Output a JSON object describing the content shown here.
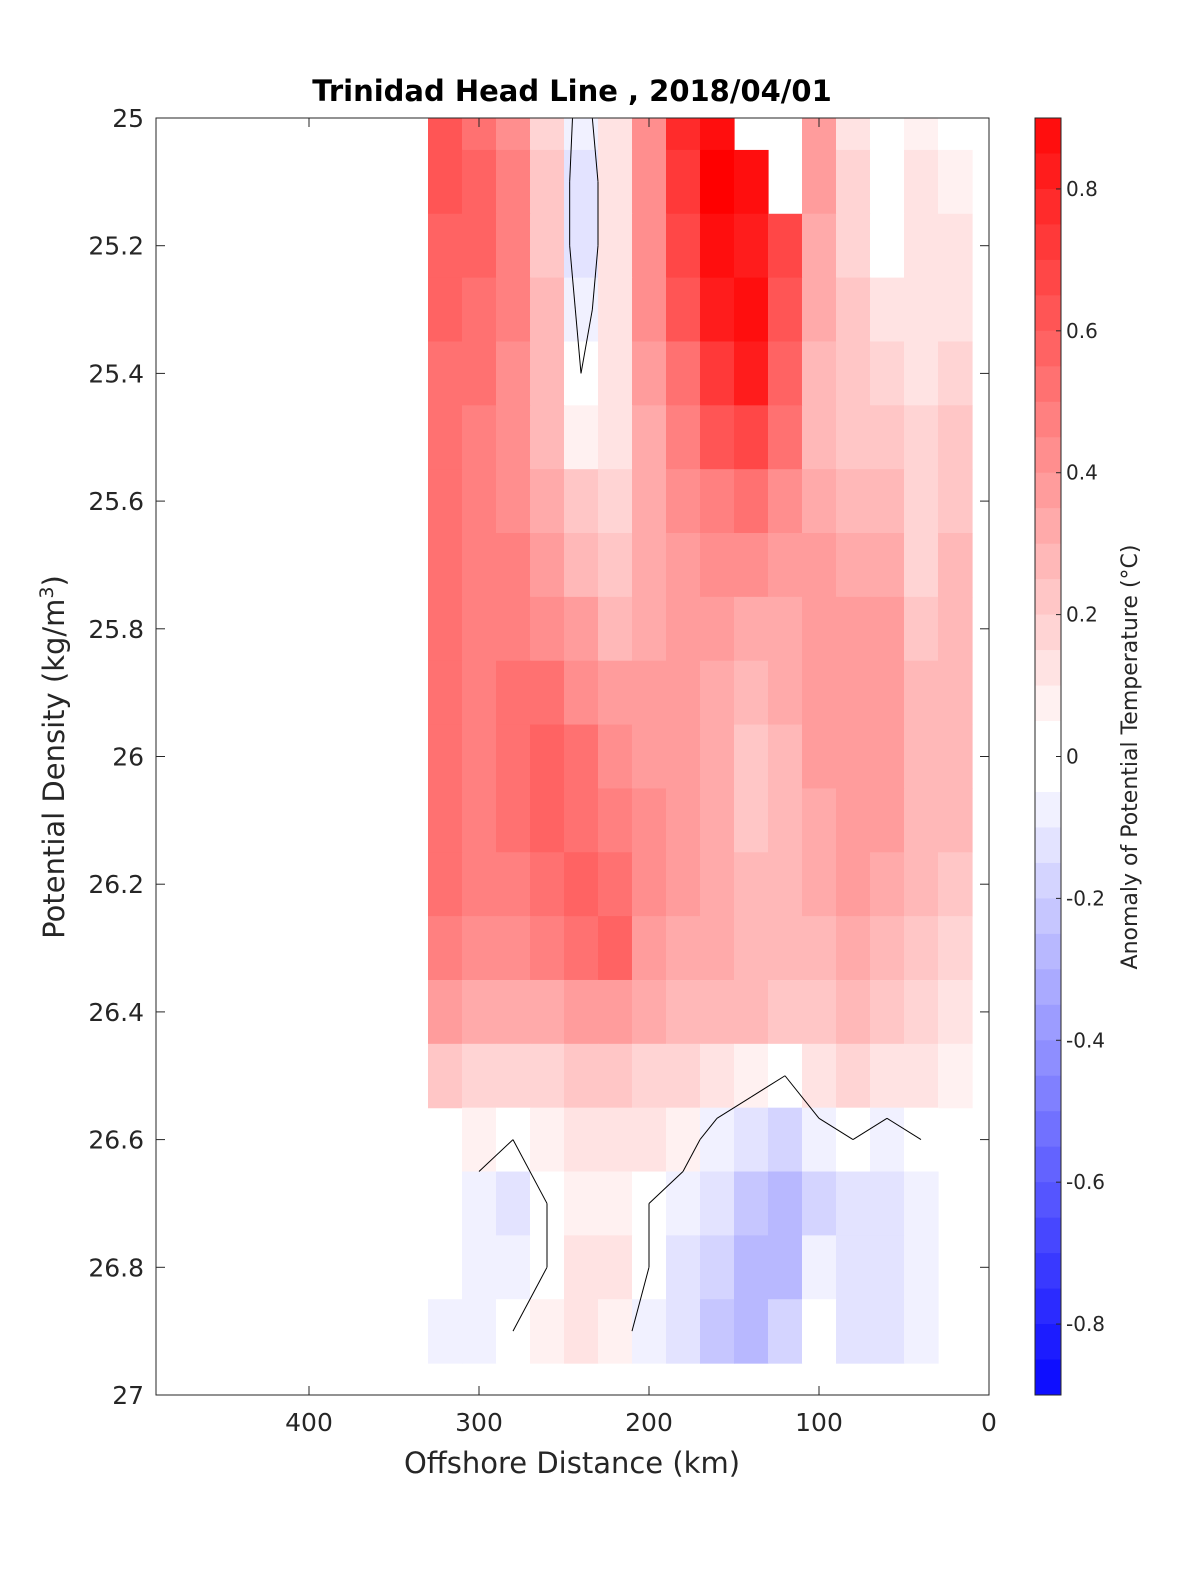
{
  "chart_data": {
    "type": "heatmap",
    "title": "Trinidad Head Line , 2018/04/01",
    "xlabel": "Offshore Distance (km)",
    "ylabel": "Potential Density (kg/m",
    "ylabel_superscript": "3",
    "ylabel_suffix": ")",
    "colorbar_label": "Anomaly of Potential Temperature (°C)",
    "xlim": [
      490,
      0
    ],
    "ylim": [
      25,
      27
    ],
    "x_ticks": [
      400,
      300,
      200,
      100,
      0
    ],
    "x_tick_labels": [
      "400",
      "300",
      "200",
      "100",
      "0"
    ],
    "y_ticks": [
      25,
      25.2,
      25.4,
      25.6,
      25.8,
      26,
      26.2,
      26.4,
      26.6,
      26.8,
      27
    ],
    "y_tick_labels": [
      "25",
      "25.2",
      "25.4",
      "25.6",
      "25.8",
      "26",
      "26.2",
      "26.4",
      "26.6",
      "26.8",
      "27"
    ],
    "colorbar_range": [
      -0.9,
      0.9
    ],
    "colorbar_ticks": [
      0.8,
      0.6,
      0.4,
      0.2,
      0,
      -0.2,
      -0.4,
      -0.6,
      -0.8
    ],
    "colorbar_tick_labels": [
      "0.8",
      "0.6",
      "0.4",
      "0.2",
      "0",
      "-0.2",
      "-0.4",
      "-0.6",
      "-0.8"
    ],
    "colormap": {
      "negative": "#0000ff",
      "zero": "#ffffff",
      "positive": "#ff0000"
    },
    "contour_level": 0,
    "x": [
      320,
      300,
      280,
      260,
      240,
      220,
      200,
      180,
      160,
      140,
      120,
      100,
      80,
      60,
      40,
      20
    ],
    "y": [
      25,
      25.1,
      25.2,
      25.3,
      25.4,
      25.5,
      25.6,
      25.7,
      25.8,
      25.9,
      26,
      26.1,
      26.2,
      26.3,
      26.4,
      26.5,
      26.6,
      26.7,
      26.8,
      26.9
    ],
    "z": [
      [
        0.6,
        0.5,
        0.4,
        0.15,
        -0.05,
        0.1,
        0.4,
        0.75,
        0.85,
        null,
        null,
        0.35,
        0.1,
        0.0,
        0.05,
        0.0
      ],
      [
        0.6,
        0.55,
        0.45,
        0.2,
        -0.1,
        0.1,
        0.4,
        0.7,
        0.9,
        0.85,
        null,
        0.35,
        0.15,
        0.0,
        0.1,
        0.05
      ],
      [
        0.55,
        0.55,
        0.45,
        0.2,
        -0.1,
        0.1,
        0.4,
        0.65,
        0.85,
        0.8,
        0.65,
        0.3,
        0.15,
        0.0,
        0.1,
        0.1
      ],
      [
        0.55,
        0.5,
        0.45,
        0.25,
        -0.05,
        0.1,
        0.4,
        0.6,
        0.8,
        0.85,
        0.6,
        0.3,
        0.2,
        0.1,
        0.1,
        0.1
      ],
      [
        0.5,
        0.5,
        0.4,
        0.25,
        0.0,
        0.1,
        0.35,
        0.5,
        0.7,
        0.8,
        0.55,
        0.25,
        0.2,
        0.15,
        0.1,
        0.15
      ],
      [
        0.5,
        0.45,
        0.4,
        0.25,
        0.05,
        0.1,
        0.3,
        0.45,
        0.6,
        0.65,
        0.5,
        0.25,
        0.2,
        0.2,
        0.15,
        0.2
      ],
      [
        0.5,
        0.45,
        0.4,
        0.3,
        0.2,
        0.15,
        0.3,
        0.4,
        0.45,
        0.5,
        0.4,
        0.3,
        0.25,
        0.25,
        0.15,
        0.2
      ],
      [
        0.5,
        0.45,
        0.45,
        0.35,
        0.25,
        0.2,
        0.3,
        0.35,
        0.4,
        0.4,
        0.35,
        0.35,
        0.3,
        0.3,
        0.15,
        0.25
      ],
      [
        0.5,
        0.45,
        0.45,
        0.4,
        0.35,
        0.25,
        0.3,
        0.35,
        0.35,
        0.3,
        0.3,
        0.35,
        0.35,
        0.35,
        0.2,
        0.25
      ],
      [
        0.5,
        0.45,
        0.5,
        0.5,
        0.4,
        0.35,
        0.35,
        0.35,
        0.3,
        0.25,
        0.3,
        0.35,
        0.35,
        0.35,
        0.25,
        0.25
      ],
      [
        0.5,
        0.45,
        0.5,
        0.55,
        0.5,
        0.4,
        0.35,
        0.35,
        0.3,
        0.2,
        0.25,
        0.35,
        0.35,
        0.35,
        0.25,
        0.25
      ],
      [
        0.5,
        0.45,
        0.5,
        0.55,
        0.5,
        0.45,
        0.4,
        0.35,
        0.3,
        0.2,
        0.25,
        0.3,
        0.35,
        0.35,
        0.25,
        0.25
      ],
      [
        0.5,
        0.45,
        0.45,
        0.5,
        0.55,
        0.5,
        0.4,
        0.35,
        0.3,
        0.25,
        0.25,
        0.3,
        0.35,
        0.3,
        0.25,
        0.2
      ],
      [
        0.45,
        0.4,
        0.4,
        0.45,
        0.5,
        0.55,
        0.35,
        0.3,
        0.3,
        0.25,
        0.25,
        0.25,
        0.3,
        0.25,
        0.2,
        0.15
      ],
      [
        0.35,
        0.3,
        0.3,
        0.3,
        0.35,
        0.35,
        0.3,
        0.25,
        0.25,
        0.25,
        0.2,
        0.2,
        0.25,
        0.2,
        0.15,
        0.1
      ],
      [
        0.2,
        0.15,
        0.15,
        0.15,
        0.2,
        0.2,
        0.15,
        0.15,
        0.1,
        0.05,
        0.0,
        0.1,
        0.15,
        0.1,
        0.1,
        0.05
      ],
      [
        null,
        0.05,
        0.0,
        0.05,
        0.1,
        0.1,
        0.1,
        0.05,
        -0.05,
        -0.1,
        -0.15,
        -0.05,
        0.0,
        -0.05,
        0.0,
        null
      ],
      [
        null,
        -0.05,
        -0.1,
        0.0,
        0.05,
        0.05,
        0.0,
        -0.05,
        -0.1,
        -0.2,
        -0.25,
        -0.15,
        -0.1,
        -0.1,
        -0.05,
        null
      ],
      [
        null,
        -0.05,
        -0.05,
        0.0,
        0.1,
        0.1,
        0.0,
        -0.1,
        -0.15,
        -0.25,
        -0.25,
        -0.05,
        -0.1,
        -0.1,
        -0.05,
        null
      ],
      [
        -0.05,
        -0.05,
        0.0,
        0.05,
        0.1,
        0.05,
        -0.05,
        -0.1,
        -0.2,
        -0.25,
        -0.15,
        0.0,
        -0.1,
        -0.1,
        -0.05,
        null
      ]
    ]
  }
}
